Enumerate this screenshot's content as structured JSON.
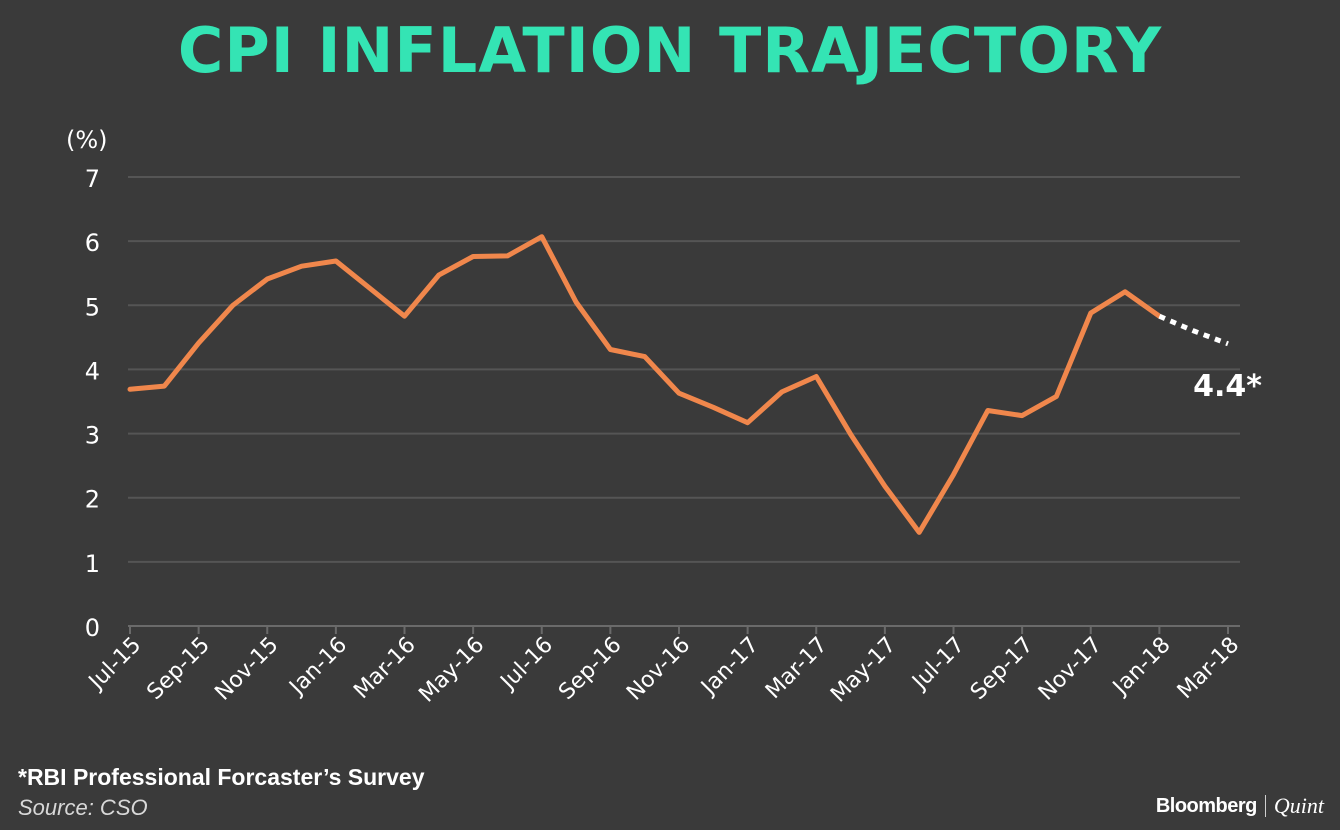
{
  "chart_data": {
    "type": "line",
    "title": "CPI INFLATION TRAJECTORY",
    "ylabel": "(%)",
    "xlabel": "",
    "ylim": [
      0,
      7
    ],
    "yticks": [
      "0",
      "1",
      "2",
      "3",
      "4",
      "5",
      "6",
      "7"
    ],
    "grid": true,
    "categories": [
      "Jul-15",
      "Aug-15",
      "Sep-15",
      "Oct-15",
      "Nov-15",
      "Dec-15",
      "Jan-16",
      "Feb-16",
      "Mar-16",
      "Apr-16",
      "May-16",
      "Jun-16",
      "Jul-16",
      "Aug-16",
      "Sep-16",
      "Oct-16",
      "Nov-16",
      "Dec-16",
      "Jan-17",
      "Feb-17",
      "Mar-17",
      "Apr-17",
      "May-17",
      "Jun-17",
      "Jul-17",
      "Aug-17",
      "Sep-17",
      "Oct-17",
      "Nov-17",
      "Dec-17",
      "Jan-18",
      "Feb-18",
      "Mar-18"
    ],
    "xtick_labels": [
      "Jul-15",
      "Sep-15",
      "Nov-15",
      "Jan-16",
      "Mar-16",
      "May-16",
      "Jul-16",
      "Sep-16",
      "Nov-16",
      "Jan-17",
      "Mar-17",
      "May-17",
      "Jul-17",
      "Sep-17",
      "Nov-17",
      "Jan-18",
      "Mar-18"
    ],
    "series": [
      {
        "name": "CPI Inflation",
        "color": "#f0874c",
        "values": [
          3.69,
          3.74,
          4.41,
          5.0,
          5.41,
          5.61,
          5.69,
          5.26,
          4.83,
          5.47,
          5.76,
          5.77,
          6.07,
          5.05,
          4.31,
          4.2,
          3.63,
          3.41,
          3.17,
          3.65,
          3.89,
          2.99,
          2.18,
          1.46,
          2.36,
          3.36,
          3.28,
          3.58,
          4.88,
          5.21,
          4.83,
          null,
          null
        ]
      },
      {
        "name": "Forecast",
        "style": "dotted",
        "color": "#ffffff",
        "values": [
          null,
          null,
          null,
          null,
          null,
          null,
          null,
          null,
          null,
          null,
          null,
          null,
          null,
          null,
          null,
          null,
          null,
          null,
          null,
          null,
          null,
          null,
          null,
          null,
          null,
          null,
          null,
          null,
          null,
          null,
          4.83,
          4.6,
          4.4
        ]
      }
    ],
    "annotations": [
      {
        "text": "4.4*",
        "x": "Mar-18",
        "y": 4.4
      }
    ]
  },
  "footnote": "*RBI Professional Forcaster’s Survey",
  "source": "Source: CSO",
  "brand": {
    "name": "Bloomberg",
    "sub": "Quint"
  },
  "colors": {
    "background": "#3a3a3a",
    "title": "#34e4b4",
    "line": "#f0874c",
    "grid": "#555555",
    "text": "#ffffff"
  }
}
